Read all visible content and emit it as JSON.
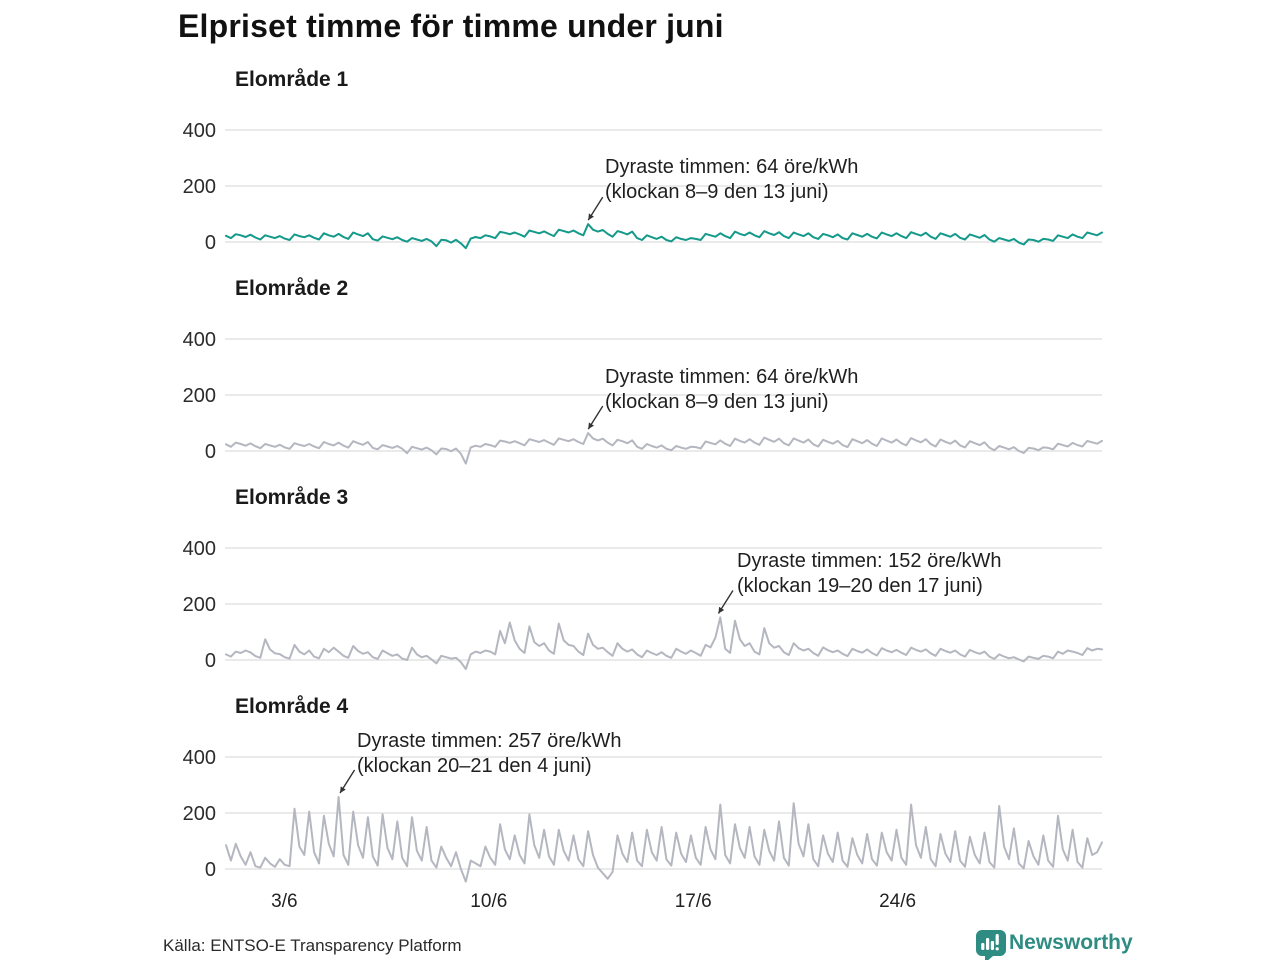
{
  "header": {
    "title": "Elpriset timme för timme under juni"
  },
  "footer": {
    "source": "Källa: ENTSO-E Transparency Platform",
    "brand": "Newsworthy"
  },
  "colors": {
    "teal_line": "#14998a",
    "gray_line": "#b5b7c0",
    "gridline": "#dddddd",
    "text": "#1f1f1f",
    "brand_teal": "#2e8c82"
  },
  "x_axis": {
    "tick_labels": [
      "3/6",
      "10/6",
      "17/6",
      "24/6"
    ],
    "tick_days": [
      3,
      10,
      17,
      24
    ]
  },
  "chart_data": [
    {
      "type": "line",
      "title": "Elområde 1",
      "unit": "öre/kWh",
      "color": "#14998a",
      "y_ticks": [
        400,
        200,
        0
      ],
      "ylim": [
        -60,
        460
      ],
      "start_day": 1,
      "points_per_day": 6,
      "annotation": {
        "line1": "Dyraste timmen: 64 öre/kWh",
        "line2": "(klockan 8–9 den 13 juni)",
        "peak_value": 64,
        "peak_day": 13,
        "peak_hour": 8.5
      },
      "values": [
        22,
        14,
        28,
        24,
        18,
        26,
        16,
        9,
        24,
        19,
        14,
        21,
        12,
        7,
        27,
        21,
        17,
        24,
        15,
        9,
        31,
        24,
        19,
        29,
        18,
        11,
        34,
        27,
        21,
        31,
        10,
        5,
        20,
        15,
        10,
        17,
        7,
        1,
        14,
        9,
        4,
        11,
        2,
        -15,
        8,
        6,
        -2,
        8,
        -5,
        -22,
        12,
        18,
        14,
        24,
        20,
        14,
        36,
        33,
        28,
        34,
        27,
        19,
        41,
        36,
        31,
        38,
        29,
        21,
        44,
        39,
        34,
        41,
        31,
        24,
        64,
        44,
        37,
        43,
        29,
        19,
        39,
        34,
        27,
        37,
        14,
        7,
        24,
        17,
        11,
        19,
        7,
        2,
        17,
        11,
        7,
        14,
        11,
        7,
        29,
        24,
        19,
        31,
        21,
        14,
        37,
        29,
        24,
        34,
        24,
        17,
        39,
        31,
        25,
        35,
        21,
        14,
        34,
        27,
        21,
        31,
        17,
        11,
        29,
        24,
        17,
        27,
        14,
        9,
        31,
        25,
        19,
        29,
        19,
        13,
        34,
        27,
        21,
        31,
        21,
        14,
        35,
        29,
        23,
        33,
        19,
        11,
        31,
        25,
        19,
        29,
        15,
        9,
        27,
        21,
        15,
        25,
        9,
        1,
        14,
        9,
        4,
        11,
        -2,
        -9,
        9,
        7,
        1,
        11,
        9,
        4,
        24,
        19,
        14,
        27,
        19,
        14,
        34,
        29,
        24,
        34
      ]
    },
    {
      "type": "line",
      "title": "Elområde 2",
      "unit": "öre/kWh",
      "color": "#b5b7c0",
      "y_ticks": [
        400,
        200,
        0
      ],
      "ylim": [
        -60,
        460
      ],
      "start_day": 1,
      "points_per_day": 6,
      "annotation": {
        "line1": "Dyraste timmen: 64 öre/kWh",
        "line2": "(klockan 8–9 den 13 juni)",
        "peak_value": 64,
        "peak_day": 13,
        "peak_hour": 8.5
      },
      "values": [
        24,
        15,
        30,
        25,
        19,
        27,
        17,
        10,
        25,
        20,
        15,
        22,
        13,
        8,
        28,
        22,
        18,
        25,
        16,
        10,
        32,
        25,
        20,
        30,
        19,
        12,
        35,
        28,
        22,
        32,
        11,
        6,
        21,
        16,
        11,
        18,
        8,
        -8,
        15,
        10,
        5,
        12,
        3,
        -12,
        9,
        7,
        -1,
        9,
        -10,
        -45,
        13,
        19,
        15,
        25,
        21,
        15,
        37,
        34,
        29,
        35,
        28,
        20,
        42,
        37,
        32,
        39,
        30,
        22,
        45,
        40,
        35,
        42,
        32,
        25,
        64,
        45,
        38,
        44,
        30,
        20,
        40,
        35,
        28,
        38,
        15,
        8,
        25,
        18,
        12,
        20,
        8,
        3,
        18,
        12,
        8,
        15,
        14,
        9,
        34,
        29,
        24,
        38,
        26,
        18,
        44,
        36,
        30,
        42,
        30,
        22,
        48,
        40,
        33,
        44,
        28,
        20,
        45,
        37,
        30,
        41,
        24,
        16,
        40,
        33,
        26,
        36,
        21,
        14,
        42,
        35,
        28,
        39,
        26,
        18,
        45,
        37,
        30,
        41,
        28,
        20,
        46,
        38,
        31,
        42,
        25,
        16,
        41,
        33,
        26,
        37,
        20,
        13,
        35,
        28,
        21,
        31,
        12,
        3,
        18,
        12,
        6,
        14,
        0,
        -7,
        11,
        9,
        3,
        13,
        11,
        6,
        26,
        21,
        16,
        29,
        21,
        16,
        36,
        31,
        26,
        36
      ]
    },
    {
      "type": "line",
      "title": "Elområde 3",
      "unit": "öre/kWh",
      "color": "#b5b7c0",
      "y_ticks": [
        400,
        200,
        0
      ],
      "ylim": [
        -60,
        460
      ],
      "start_day": 1,
      "points_per_day": 6,
      "annotation": {
        "line1": "Dyraste timmen: 152 öre/kWh",
        "line2": "(klockan 19–20 den 17 juni)",
        "peak_value": 152,
        "peak_day": 17,
        "peak_hour": 19.5
      },
      "values": [
        20,
        12,
        30,
        25,
        34,
        27,
        14,
        8,
        74,
        38,
        24,
        21,
        10,
        5,
        54,
        30,
        20,
        34,
        12,
        6,
        40,
        28,
        44,
        30,
        15,
        8,
        50,
        32,
        22,
        28,
        10,
        4,
        34,
        24,
        15,
        20,
        5,
        0,
        44,
        20,
        10,
        15,
        2,
        -12,
        15,
        10,
        5,
        8,
        -8,
        -32,
        20,
        30,
        25,
        34,
        30,
        20,
        104,
        60,
        134,
        70,
        40,
        25,
        120,
        64,
        50,
        60,
        34,
        22,
        130,
        70,
        54,
        50,
        30,
        18,
        94,
        54,
        40,
        44,
        28,
        15,
        60,
        40,
        30,
        38,
        20,
        10,
        34,
        25,
        18,
        28,
        15,
        8,
        40,
        30,
        22,
        34,
        25,
        15,
        54,
        45,
        80,
        152,
        40,
        25,
        140,
        74,
        50,
        60,
        30,
        20,
        114,
        60,
        44,
        50,
        28,
        18,
        60,
        42,
        34,
        40,
        25,
        15,
        45,
        35,
        28,
        34,
        22,
        14,
        40,
        32,
        26,
        38,
        25,
        16,
        42,
        34,
        28,
        36,
        26,
        18,
        44,
        36,
        30,
        38,
        24,
        15,
        40,
        32,
        26,
        34,
        20,
        12,
        36,
        28,
        22,
        30,
        12,
        4,
        20,
        12,
        6,
        10,
        2,
        -5,
        12,
        8,
        4,
        15,
        12,
        6,
        30,
        22,
        34,
        30,
        25,
        18,
        42,
        34,
        40,
        38
      ]
    },
    {
      "type": "line",
      "title": "Elområde 4",
      "unit": "öre/kWh",
      "color": "#b5b7c0",
      "y_ticks": [
        400,
        200,
        0
      ],
      "ylim": [
        -60,
        460
      ],
      "start_day": 1,
      "points_per_day": 6,
      "annotation": {
        "line1": "Dyraste timmen: 257 öre/kWh",
        "line2": "(klockan 20–21 den 4 juni)",
        "peak_value": 257,
        "peak_day": 4,
        "peak_hour": 20.5
      },
      "values": [
        85,
        30,
        90,
        45,
        15,
        60,
        10,
        5,
        40,
        20,
        8,
        35,
        15,
        10,
        215,
        80,
        50,
        205,
        60,
        20,
        190,
        90,
        45,
        257,
        50,
        15,
        205,
        85,
        40,
        185,
        45,
        12,
        195,
        75,
        35,
        170,
        40,
        10,
        185,
        65,
        30,
        150,
        30,
        5,
        80,
        40,
        10,
        60,
        0,
        -45,
        30,
        20,
        10,
        80,
        40,
        15,
        160,
        70,
        35,
        120,
        50,
        20,
        195,
        85,
        40,
        140,
        45,
        15,
        140,
        65,
        30,
        120,
        35,
        10,
        135,
        50,
        5,
        -15,
        -35,
        -10,
        120,
        55,
        25,
        130,
        30,
        10,
        140,
        60,
        30,
        150,
        35,
        12,
        130,
        55,
        25,
        120,
        40,
        15,
        150,
        70,
        35,
        230,
        50,
        20,
        160,
        75,
        40,
        150,
        45,
        15,
        140,
        65,
        30,
        170,
        40,
        12,
        235,
        90,
        45,
        160,
        35,
        10,
        120,
        55,
        25,
        130,
        30,
        8,
        110,
        50,
        20,
        125,
        35,
        12,
        130,
        60,
        30,
        140,
        40,
        15,
        230,
        85,
        40,
        150,
        35,
        10,
        125,
        55,
        25,
        135,
        30,
        8,
        115,
        50,
        20,
        130,
        25,
        5,
        225,
        80,
        35,
        145,
        20,
        2,
        100,
        45,
        15,
        120,
        30,
        8,
        190,
        70,
        30,
        140,
        25,
        5,
        110,
        50,
        60,
        95
      ]
    }
  ]
}
